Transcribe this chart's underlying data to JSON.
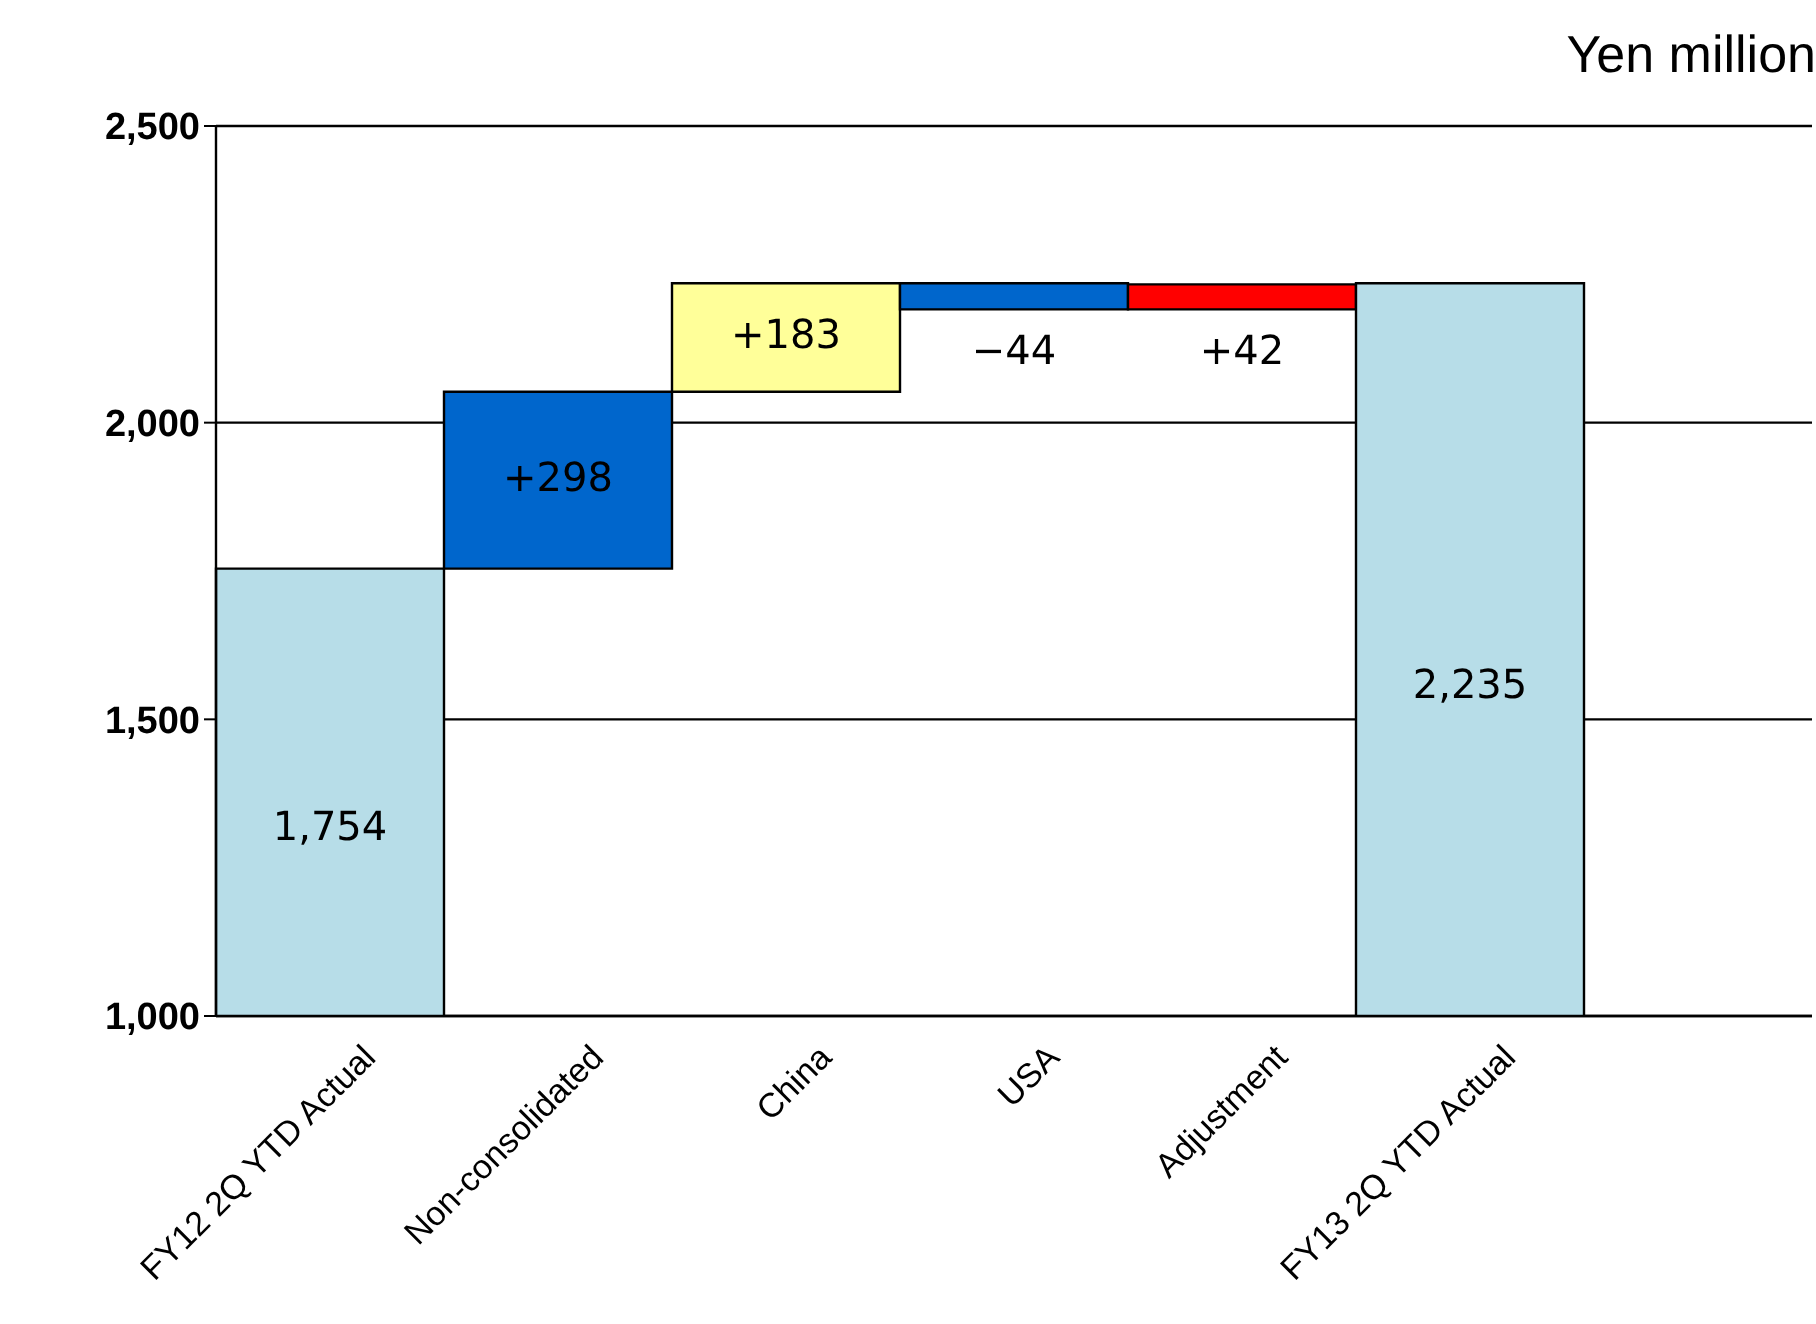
{
  "chart_data": {
    "type": "bar",
    "ylabel": "Yen million",
    "categories": [
      "FY12 2Q YTD Actual",
      "Non-consolidated",
      "China",
      "USA",
      "Adjustment",
      "FY13 2Q YTD Actual",
      null
    ],
    "values": [
      1754,
      298,
      183,
      -44,
      42,
      2235,
      null
    ],
    "base": [
      0,
      1754,
      2052,
      2235,
      2191,
      0,
      null
    ],
    "colors": [
      "#b7dde8",
      "#0066cc",
      "#ffff99",
      "#0066cc",
      "#ff0000",
      "#b7dde8",
      "#b7dde8"
    ],
    "value_labels": [
      "1,754",
      "+298",
      "+183",
      "−44",
      "+42",
      "2,235",
      null
    ],
    "ylim": [
      1000,
      2500
    ],
    "yticks": [
      {
        "value": 1000,
        "label": "1,000"
      },
      {
        "value": 1500,
        "label": "1,500"
      },
      {
        "value": 2000,
        "label": "2,000"
      },
      {
        "value": 2500,
        "label": "2,500"
      }
    ],
    "grid": "y"
  }
}
